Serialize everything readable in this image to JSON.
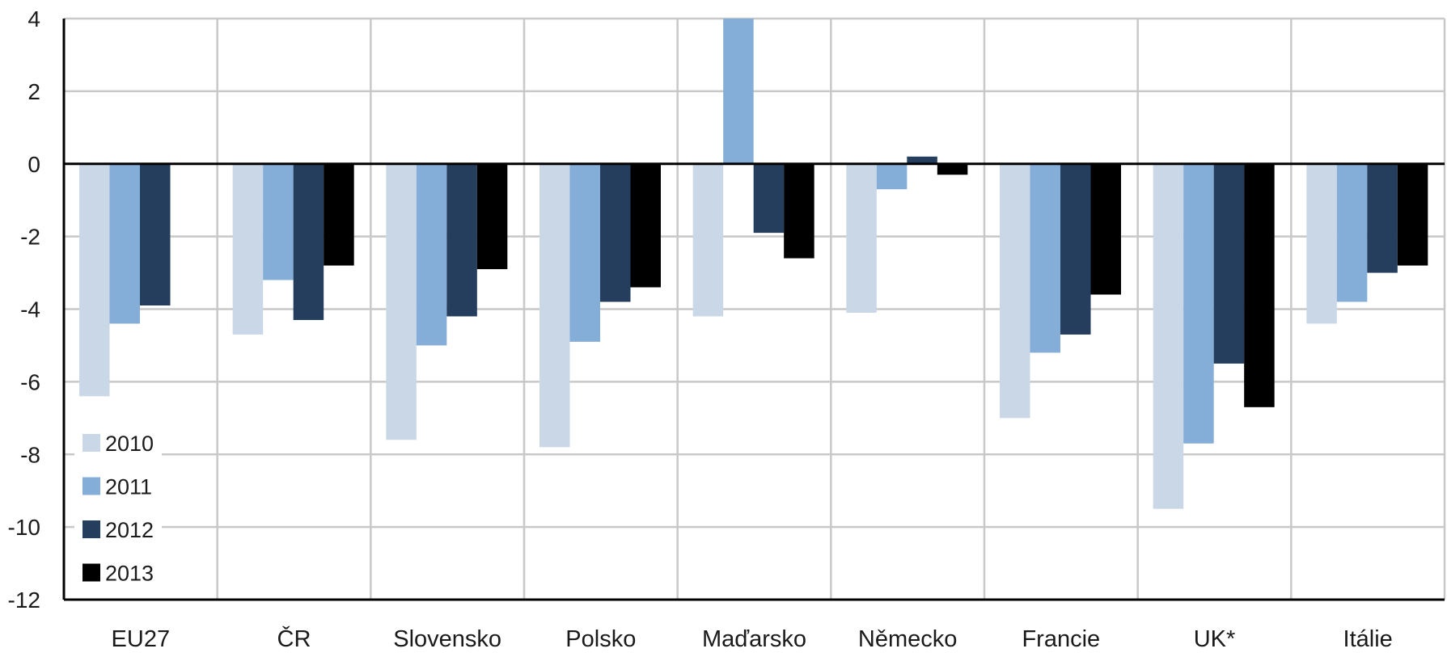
{
  "chart_data": {
    "type": "bar",
    "categories": [
      "EU27",
      "ČR",
      "Slovensko",
      "Polsko",
      "Maďarsko",
      "Německo",
      "Francie",
      "UK*",
      "Itálie"
    ],
    "series": [
      {
        "name": "2010",
        "color": "#c9d7e7",
        "values": [
          -6.4,
          -4.7,
          -7.6,
          -7.8,
          -4.2,
          -4.1,
          -7.0,
          -9.5,
          -4.4
        ]
      },
      {
        "name": "2011",
        "color": "#84aed8",
        "values": [
          -4.4,
          -3.2,
          -5.0,
          -4.9,
          4.0,
          -0.7,
          -5.2,
          -7.7,
          -3.8
        ]
      },
      {
        "name": "2012",
        "color": "#253e5e",
        "values": [
          -3.9,
          -4.3,
          -4.2,
          -3.8,
          -1.9,
          0.2,
          -4.7,
          -5.5,
          -3.0
        ]
      },
      {
        "name": "2013",
        "color": "#000000",
        "values": [
          null,
          -2.8,
          -2.9,
          -3.4,
          -2.6,
          -0.3,
          -3.6,
          -6.7,
          -2.8
        ]
      }
    ],
    "ylim": [
      -12,
      4
    ],
    "yticks": [
      4,
      2,
      0,
      -2,
      -4,
      -6,
      -8,
      -10,
      -12
    ],
    "ytick_labels": [
      "4",
      "2",
      "0",
      "-2",
      "-4",
      "-6",
      "-8",
      "-10",
      "-12"
    ],
    "grid": true,
    "legend_position": "bottom-left"
  }
}
